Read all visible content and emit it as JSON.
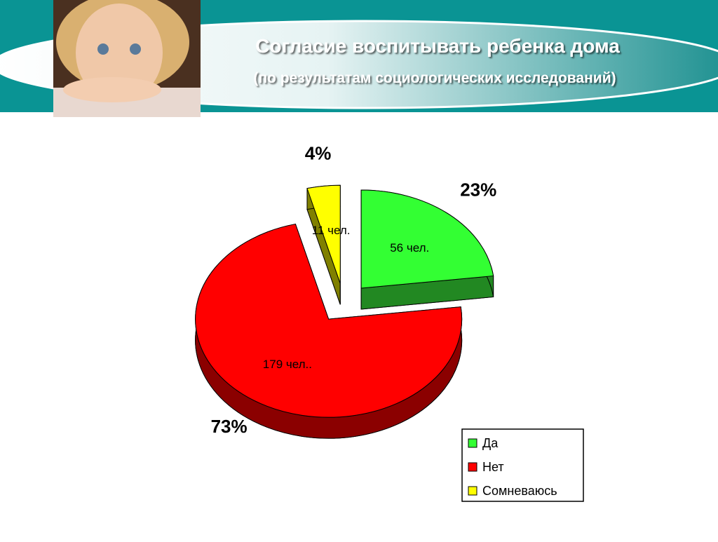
{
  "chart_data": {
    "type": "pie3d",
    "title": "Согласие воспитывать ребенка дома",
    "subtitle": "(по результатам социологических исследований)",
    "categories": [
      "Да",
      "Нет",
      "Сомневаюсь"
    ],
    "values": [
      23,
      73,
      4
    ],
    "value_labels": [
      "23%",
      "73%",
      "4%"
    ],
    "count_labels": [
      "56 чел.",
      "179 чел..",
      "11 чел."
    ],
    "colors": [
      "#33ff33",
      "#ff0000",
      "#ffff00"
    ],
    "side_colors": [
      "#228822",
      "#8b0000",
      "#808000"
    ],
    "legend": "bottom-right"
  }
}
